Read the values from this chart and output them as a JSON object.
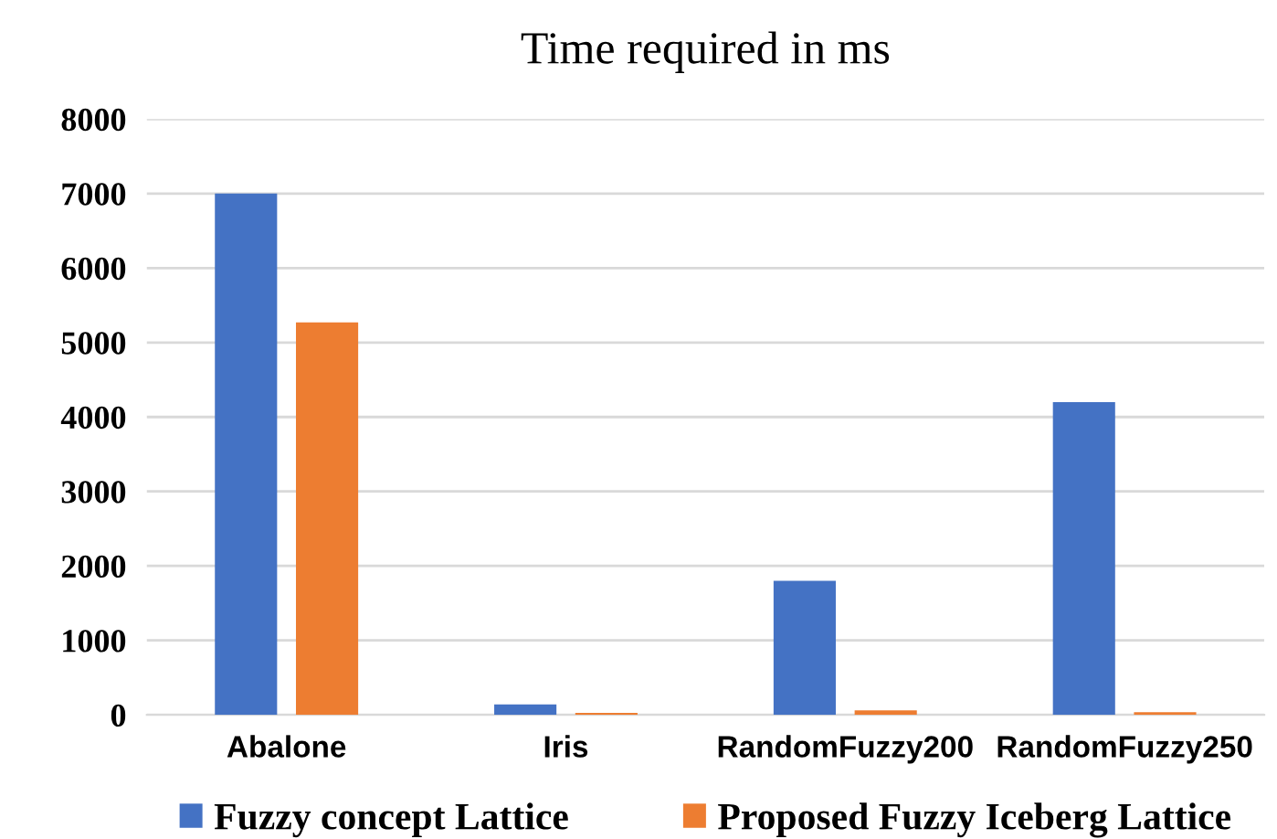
{
  "chart_data": {
    "type": "bar",
    "title": "Time required in ms",
    "categories": [
      "Abalone",
      "Iris",
      "RandomFuzzy200",
      "RandomFuzzy250"
    ],
    "series": [
      {
        "name": "Fuzzy concept Lattice",
        "color": "#4472c4",
        "values": [
          7000,
          140,
          1800,
          4200
        ]
      },
      {
        "name": "Proposed Fuzzy Iceberg Lattice",
        "color": "#ed7d31",
        "values": [
          5270,
          25,
          60,
          35
        ]
      }
    ],
    "ylim": [
      0,
      8000
    ],
    "yticks": [
      0,
      1000,
      2000,
      3000,
      4000,
      5000,
      6000,
      7000,
      8000
    ],
    "grid": "y",
    "legend": "bottom"
  }
}
